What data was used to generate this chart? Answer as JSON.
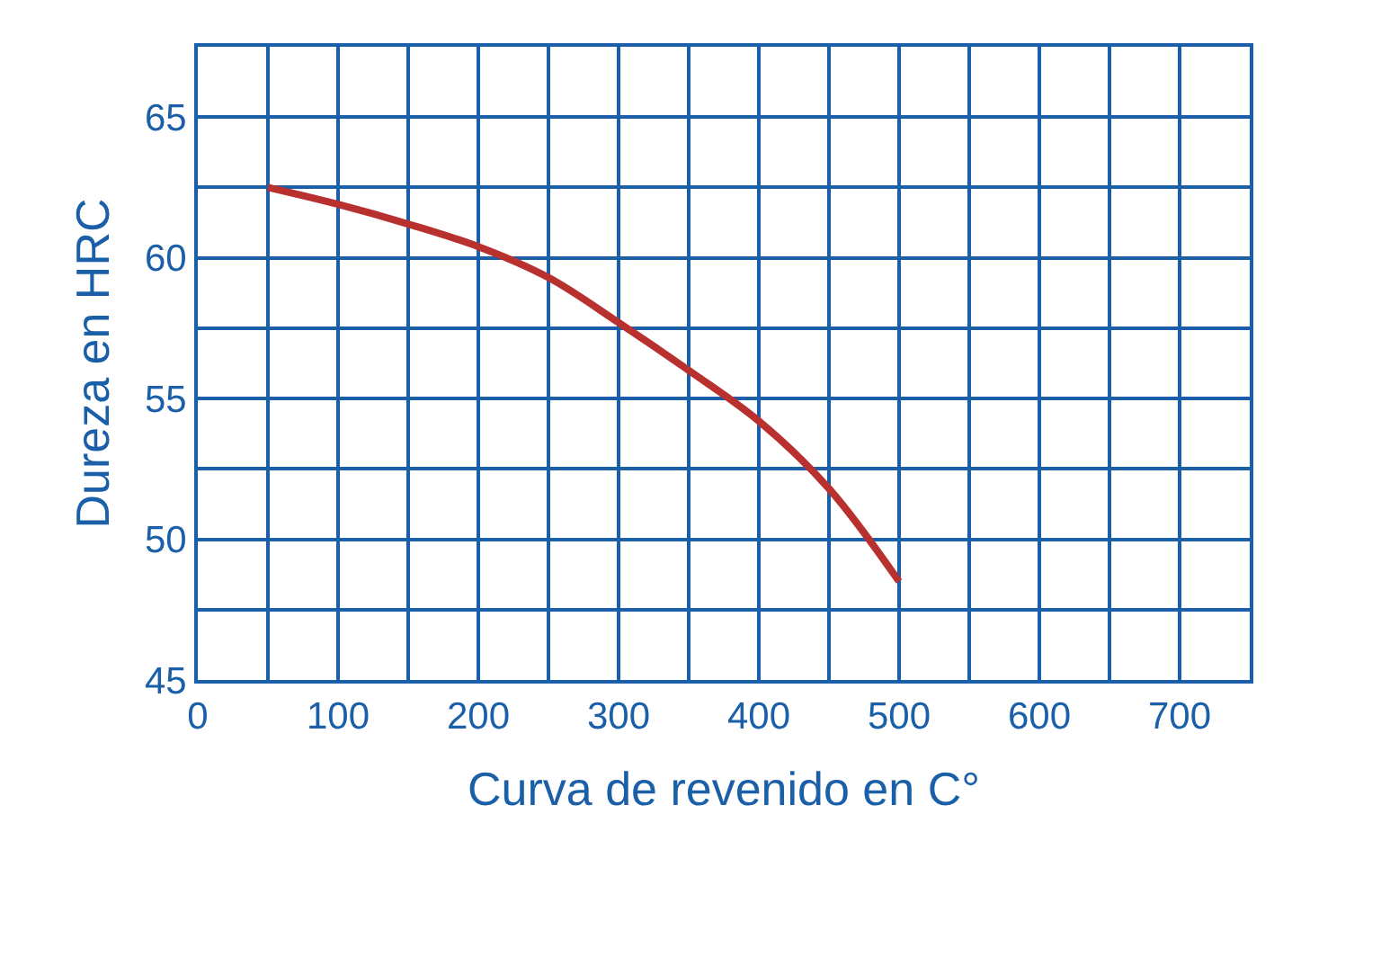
{
  "chart_data": {
    "type": "line",
    "xlabel": "Curva de revenido en C°",
    "ylabel": "Dureza en HRC",
    "x": [
      50,
      100,
      150,
      200,
      250,
      300,
      350,
      400,
      450,
      500
    ],
    "series": [
      {
        "color": "#b8312f",
        "values": [
          62.5,
          61.9,
          61.2,
          60.4,
          59.3,
          57.7,
          56.0,
          54.2,
          51.8,
          48.5
        ]
      }
    ],
    "xlim": [
      0,
      750
    ],
    "ylim": [
      45,
      67.5
    ],
    "xticks": [
      0,
      {
        "value": 50,
        "label": null
      },
      100,
      {
        "value": 150,
        "label": null
      },
      200,
      {
        "value": 250,
        "label": null
      },
      300,
      {
        "value": 350,
        "label": null
      },
      400,
      {
        "value": 450,
        "label": null
      },
      500,
      {
        "value": 550,
        "label": null
      },
      600,
      {
        "value": 650,
        "label": null
      },
      700,
      {
        "value": 750,
        "label": null
      }
    ],
    "yticks": [
      45,
      {
        "value": 47.5,
        "label": null
      },
      50,
      {
        "value": 52.5,
        "label": null
      },
      55,
      {
        "value": 57.5,
        "label": null
      },
      60,
      {
        "value": 62.5,
        "label": null
      },
      65,
      {
        "value": 67.5,
        "label": null
      }
    ],
    "grid": true,
    "marker": "none",
    "line_style": "solid"
  }
}
